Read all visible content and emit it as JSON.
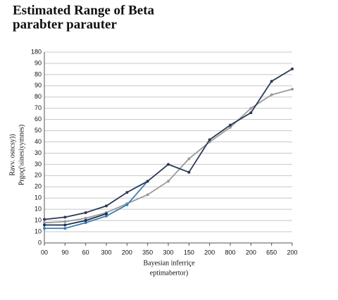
{
  "chart_data": {
    "type": "line",
    "title": [
      "Estimated Range of Beta",
      "parabter parauter"
    ],
    "xlabel": [
      "Bayesian inferriçe",
      "eptimabertor)"
    ],
    "ylabel": [
      "Ravv. osncsy))",
      "Prgoç(\\sinesiyymnes)"
    ],
    "categories": [
      "00",
      "90",
      "60",
      "300",
      "200",
      "350",
      "300",
      "150",
      "200",
      "800",
      "200",
      "650",
      "200"
    ],
    "ylim": [
      0,
      17
    ],
    "yticks": [
      {
        "value": 0,
        "label": "0"
      },
      {
        "value": 1,
        "label": "10"
      },
      {
        "value": 2,
        "label": "10"
      },
      {
        "value": 3,
        "label": "10"
      },
      {
        "value": 4,
        "label": "10"
      },
      {
        "value": 5,
        "label": "20"
      },
      {
        "value": 6,
        "label": "20"
      },
      {
        "value": 7,
        "label": "30"
      },
      {
        "value": 8,
        "label": "30"
      },
      {
        "value": 9,
        "label": "40"
      },
      {
        "value": 10,
        "label": "50"
      },
      {
        "value": 11,
        "label": "60"
      },
      {
        "value": 12,
        "label": "70"
      },
      {
        "value": 13,
        "label": "80"
      },
      {
        "value": 14,
        "label": "90"
      },
      {
        "value": 15,
        "label": "80"
      },
      {
        "value": 16,
        "label": "90"
      },
      {
        "value": 17,
        "label": "180"
      }
    ],
    "grid": true,
    "series": [
      {
        "color": "#9a9a9a",
        "values": [
          1.8,
          1.9,
          2.2,
          2.7,
          3.5,
          4.3,
          5.5,
          7.5,
          9.0,
          10.3,
          12.0,
          13.2,
          13.7
        ]
      },
      {
        "color": "#3a7db5",
        "values": [
          1.3,
          1.3,
          1.8,
          2.4,
          3.4,
          5.5,
          null,
          null,
          null,
          null,
          null,
          null,
          null
        ]
      },
      {
        "color": "#1f2e4d",
        "values": [
          1.6,
          1.6,
          2.0,
          2.6,
          null,
          null,
          null,
          null,
          null,
          null,
          null,
          null,
          null
        ]
      },
      {
        "color": "#2b3a55",
        "values": [
          2.1,
          2.3,
          2.7,
          3.3,
          4.5,
          5.5,
          7.0,
          6.3,
          9.2,
          10.5,
          11.6,
          14.4,
          15.5
        ]
      }
    ]
  }
}
